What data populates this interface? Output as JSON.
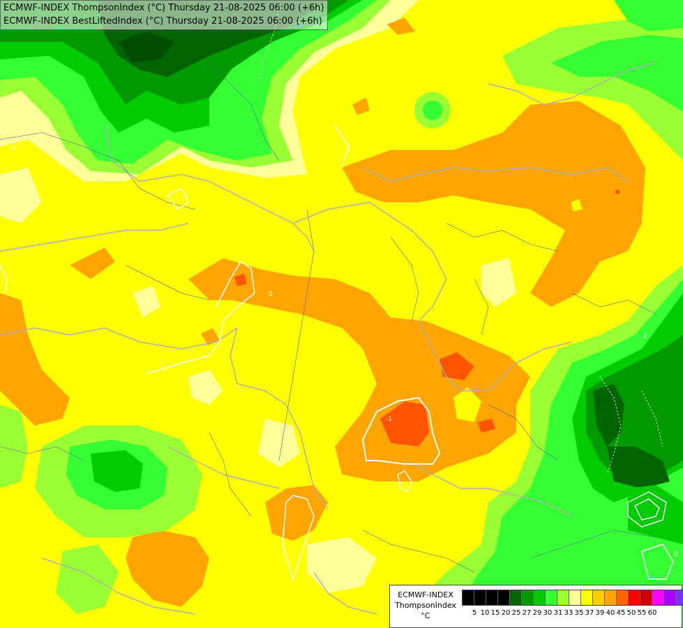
{
  "title": {
    "line1": "ECMWF-INDEX ThompsonIndex (°C) Thursday 21-08-2025 06:00 (+6h)",
    "line2": "ECMWF-INDEX BestLiftedIndex (°C) Thursday 21-08-2025 06:00 (+6h)"
  },
  "legend": {
    "line1": "ECMWF-INDEX",
    "line2": "ThompsonIndex",
    "line3": "°C",
    "swatches": [
      "#000000",
      "#000000",
      "#000000",
      "#000000",
      "#006400",
      "#009a00",
      "#00cc00",
      "#33ff33",
      "#99ff33",
      "#ffff99",
      "#ffff00",
      "#ffcc00",
      "#ffa500",
      "#ff6600",
      "#ff0000",
      "#cc0000",
      "#ff00ff",
      "#aa00ff",
      "#7a33ff",
      "#3300ff",
      "#0000ff"
    ],
    "ticks": [
      "5",
      "10",
      "15",
      "20",
      "25",
      "27",
      "29",
      "30",
      "31",
      "33",
      "35",
      "37",
      "39",
      "40",
      "45",
      "50",
      "55",
      "60"
    ]
  },
  "colors": {
    "dark_green": "#006400",
    "mid_green": "#00cc00",
    "light_green": "#99ff33",
    "pale_yellow": "#ffff99",
    "yellow": "#ffff00",
    "orange": "#ffa500",
    "red_orange": "#ff5500",
    "contour": "#ffffff",
    "border": "#b0b0b0"
  }
}
